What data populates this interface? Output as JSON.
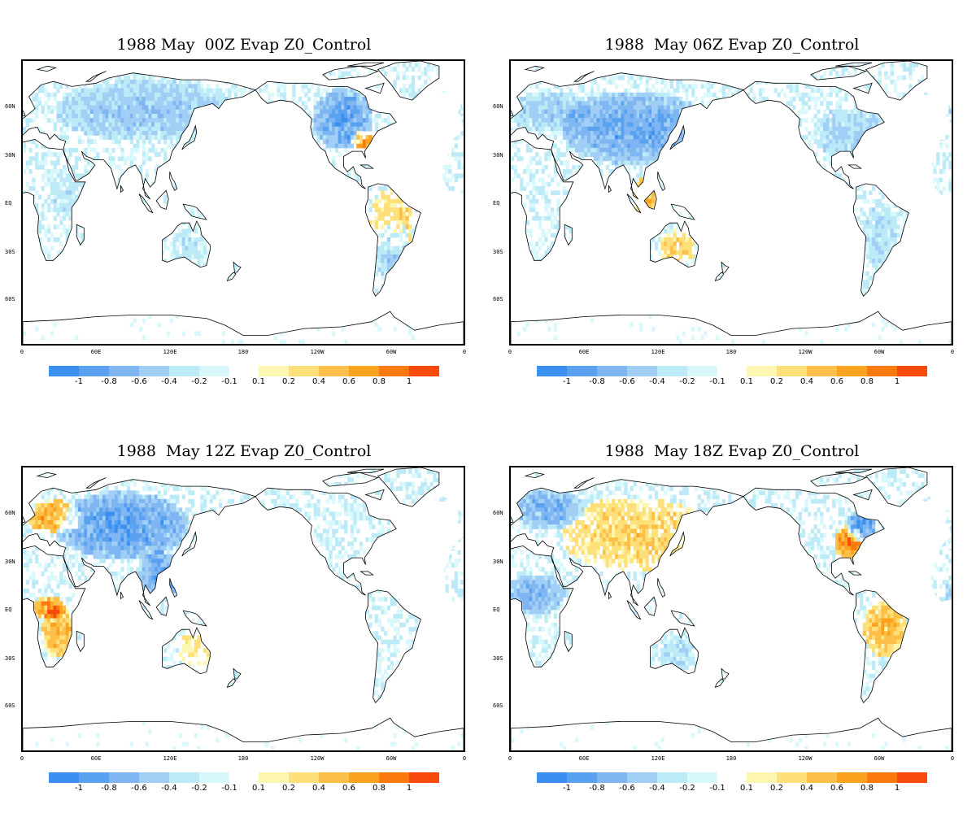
{
  "panels": [
    {
      "title": "1988 May  00Z Evap Z0_Control",
      "hour": "00Z"
    },
    {
      "title": "1988  May 06Z Evap Z0_Control",
      "hour": "06Z"
    },
    {
      "title": "1988  May 12Z Evap Z0_Control",
      "hour": "12Z"
    },
    {
      "title": "1988  May 18Z Evap Z0_Control",
      "hour": "18Z"
    }
  ],
  "axis": {
    "lat_labels": [
      "60N",
      "30N",
      "EQ",
      "30S",
      "60S"
    ],
    "lon_labels": [
      "0",
      "60E",
      "120E",
      "180",
      "120W",
      "60W",
      "0"
    ]
  },
  "colorbar": {
    "negative_colors": [
      "#3b8ff0",
      "#5aa2f0",
      "#7fb6f2",
      "#a0cef5",
      "#bdeaf7",
      "#d8f8fc"
    ],
    "positive_colors": [
      "#fdf6b0",
      "#fde07a",
      "#fcc04a",
      "#fba21e",
      "#fb7a0f",
      "#f84a0c"
    ],
    "negative_labels": [
      "-1",
      "-0.8",
      "-0.6",
      "-0.4",
      "-0.2",
      "-0.1"
    ],
    "positive_labels": [
      "0.1",
      "0.2",
      "0.4",
      "0.6",
      "0.8",
      "1"
    ]
  }
}
